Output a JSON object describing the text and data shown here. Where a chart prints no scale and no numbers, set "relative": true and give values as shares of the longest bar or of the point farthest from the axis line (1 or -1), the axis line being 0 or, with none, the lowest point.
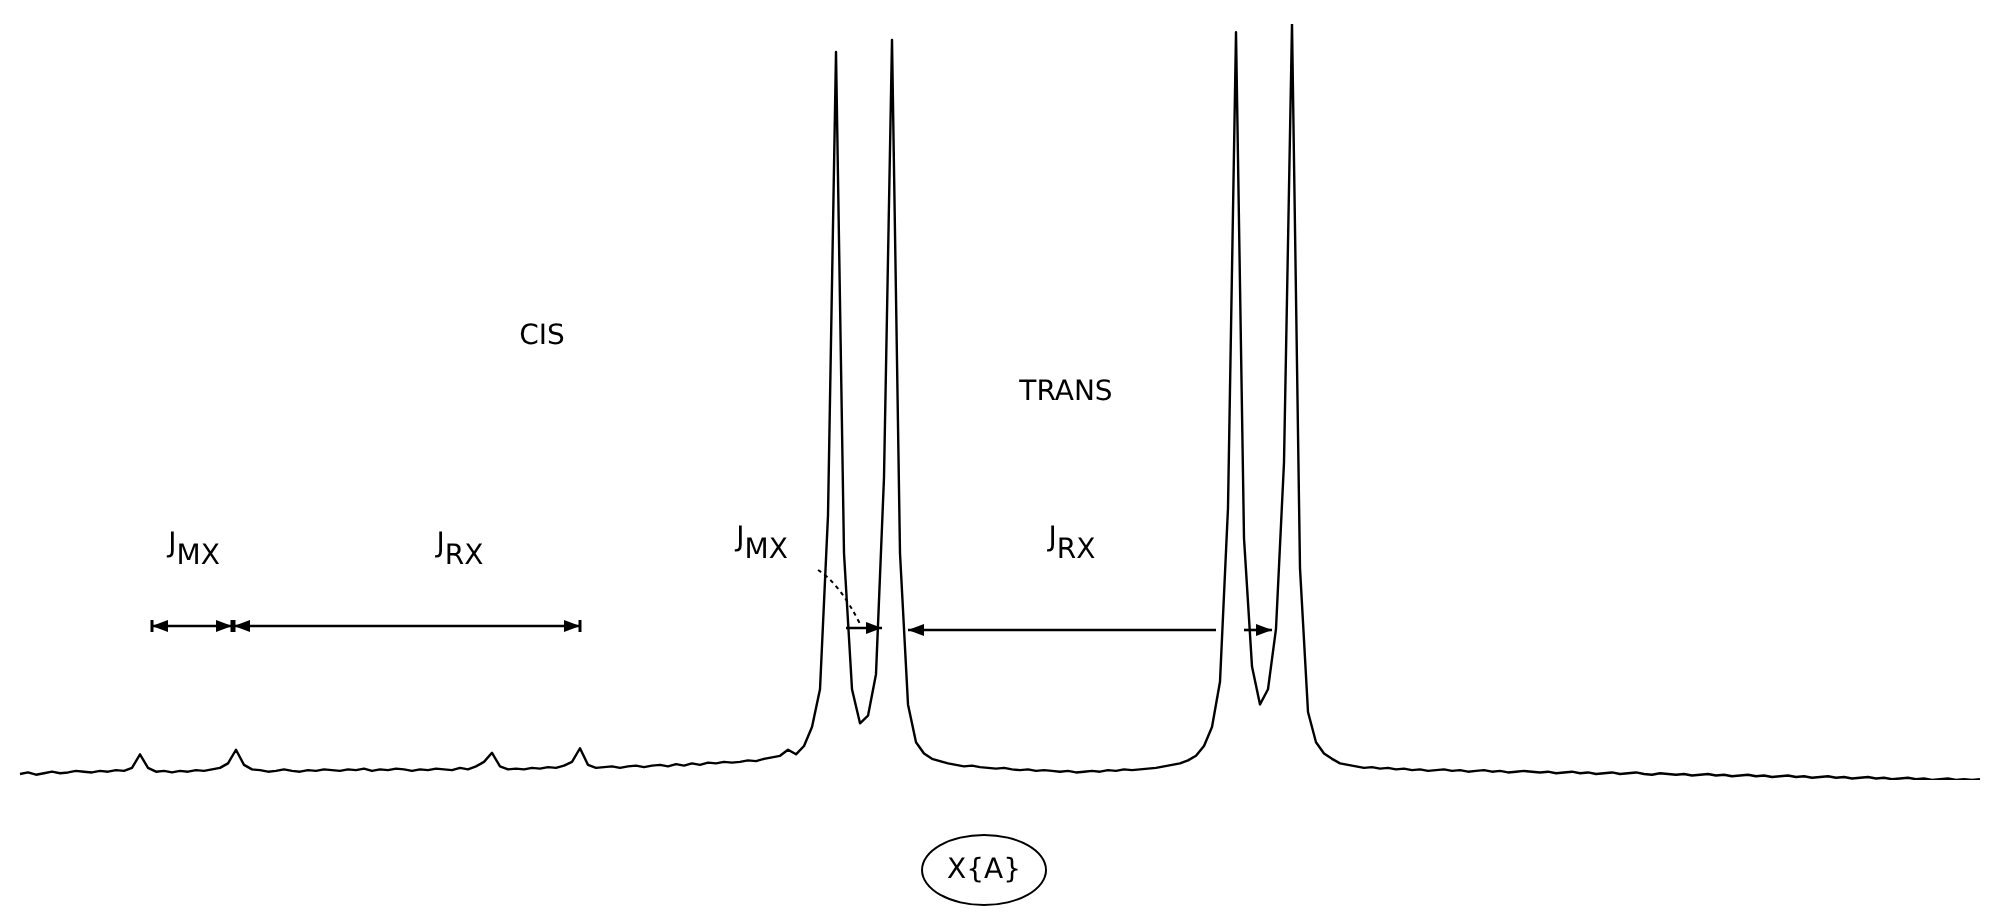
{
  "chart_data": {
    "type": "line",
    "relative": true,
    "color": "#000000",
    "marker": "none",
    "annotations": [
      "CIS",
      "TRANS",
      "J$_{MX}$",
      "J$_{RX}$",
      "J$_{MX}$",
      "J$_{RX}$",
      "X{A}"
    ],
    "categories": [
      null,
      null,
      null,
      null,
      null,
      null,
      null,
      null,
      null,
      null,
      null,
      null,
      null,
      null,
      null,
      null,
      null,
      null,
      null,
      null,
      null,
      null,
      null,
      null,
      null,
      null,
      null,
      null,
      null,
      null,
      null,
      null,
      null,
      null,
      null,
      null,
      null,
      null,
      null,
      null,
      null,
      null,
      null,
      null,
      null,
      null,
      null,
      null,
      null,
      null,
      null,
      null,
      null,
      null,
      null,
      null,
      null,
      null,
      null,
      null,
      null,
      null,
      null,
      null,
      null,
      null,
      null,
      null,
      null,
      null,
      null,
      null,
      null,
      null,
      null,
      null,
      null,
      null,
      null,
      null,
      null,
      null,
      null,
      null,
      null,
      null,
      null,
      null,
      null,
      null,
      null,
      null,
      null,
      null,
      null,
      null,
      null,
      null,
      null,
      null,
      null,
      null,
      null,
      null,
      null,
      null,
      null,
      null,
      null,
      null,
      null,
      null,
      null,
      null,
      null,
      null,
      null,
      null,
      null,
      null,
      null,
      null,
      null,
      null,
      null,
      null,
      null,
      null,
      null,
      null,
      null,
      null,
      null,
      null,
      null,
      null,
      null,
      null,
      null,
      null,
      null,
      null,
      null,
      null,
      null,
      null,
      null,
      null,
      null,
      null,
      null,
      null,
      null,
      null,
      null,
      null,
      null,
      null,
      null,
      null,
      null,
      null,
      null,
      null,
      null,
      null,
      null,
      null,
      null,
      null,
      null,
      null,
      null,
      null,
      null,
      null,
      null,
      null,
      null,
      null,
      null,
      null,
      null,
      null,
      null,
      null,
      null,
      null,
      null,
      null,
      null,
      null,
      null,
      null,
      null,
      null,
      null,
      null,
      null,
      null,
      null,
      null,
      null,
      null,
      null,
      null,
      null,
      null,
      null,
      null,
      null,
      null,
      null,
      null,
      null,
      null,
      null,
      null,
      null,
      null,
      null,
      null,
      null,
      null,
      null,
      null,
      null,
      null,
      null,
      null,
      null,
      null,
      null,
      null,
      null,
      null,
      null,
      null,
      null,
      null,
      null,
      null,
      null,
      null,
      null,
      null
    ],
    "values": [
      0.008,
      0.01,
      0.007,
      0.009,
      0.011,
      0.009,
      0.01,
      0.012,
      0.011,
      0.01,
      0.012,
      0.011,
      0.013,
      0.012,
      0.016,
      0.034,
      0.016,
      0.011,
      0.012,
      0.01,
      0.012,
      0.011,
      0.013,
      0.012,
      0.014,
      0.016,
      0.022,
      0.04,
      0.02,
      0.014,
      0.013,
      0.011,
      0.012,
      0.014,
      0.012,
      0.011,
      0.013,
      0.012,
      0.014,
      0.013,
      0.012,
      0.014,
      0.013,
      0.015,
      0.012,
      0.014,
      0.013,
      0.015,
      0.014,
      0.012,
      0.014,
      0.013,
      0.015,
      0.014,
      0.013,
      0.016,
      0.014,
      0.018,
      0.024,
      0.036,
      0.018,
      0.014,
      0.015,
      0.014,
      0.016,
      0.015,
      0.017,
      0.016,
      0.019,
      0.024,
      0.042,
      0.02,
      0.016,
      0.017,
      0.018,
      0.016,
      0.018,
      0.019,
      0.017,
      0.019,
      0.02,
      0.018,
      0.021,
      0.019,
      0.022,
      0.02,
      0.023,
      0.022,
      0.024,
      0.023,
      0.024,
      0.026,
      0.025,
      0.028,
      0.03,
      0.032,
      0.04,
      0.034,
      0.045,
      0.07,
      0.12,
      0.35,
      0.963,
      0.3,
      0.12,
      0.075,
      0.085,
      0.14,
      0.4,
      0.979,
      0.3,
      0.1,
      0.05,
      0.035,
      0.028,
      0.025,
      0.022,
      0.02,
      0.018,
      0.019,
      0.017,
      0.016,
      0.015,
      0.016,
      0.014,
      0.013,
      0.014,
      0.012,
      0.013,
      0.012,
      0.011,
      0.012,
      0.01,
      0.011,
      0.012,
      0.011,
      0.013,
      0.012,
      0.014,
      0.013,
      0.014,
      0.015,
      0.016,
      0.018,
      0.02,
      0.022,
      0.026,
      0.032,
      0.045,
      0.07,
      0.13,
      0.36,
      0.989,
      0.32,
      0.15,
      0.1,
      0.12,
      0.2,
      0.42,
      1,
      0.28,
      0.09,
      0.05,
      0.035,
      0.028,
      0.022,
      0.02,
      0.018,
      0.016,
      0.017,
      0.015,
      0.016,
      0.014,
      0.015,
      0.013,
      0.014,
      0.012,
      0.013,
      0.014,
      0.012,
      0.013,
      0.011,
      0.012,
      0.013,
      0.011,
      0.012,
      0.01,
      0.011,
      0.012,
      0.011,
      0.01,
      0.011,
      0.009,
      0.01,
      0.011,
      0.009,
      0.01,
      0.008,
      0.009,
      0.01,
      0.008,
      0.009,
      0.01,
      0.008,
      0.007,
      0.009,
      0.008,
      0.007,
      0.008,
      0.006,
      0.007,
      0.008,
      0.006,
      0.007,
      0.005,
      0.006,
      0.007,
      0.005,
      0.006,
      0.004,
      0.005,
      0.006,
      0.004,
      0.005,
      0.003,
      0.004,
      0.005,
      0.003,
      0.004,
      0.002,
      0.003,
      0.004,
      0.002,
      0.003,
      0.001,
      0.002,
      0.003,
      0.001,
      0.002,
      0.0,
      0.001,
      0.002,
      0.0,
      0.001,
      0.0,
      0.001
    ]
  }
}
